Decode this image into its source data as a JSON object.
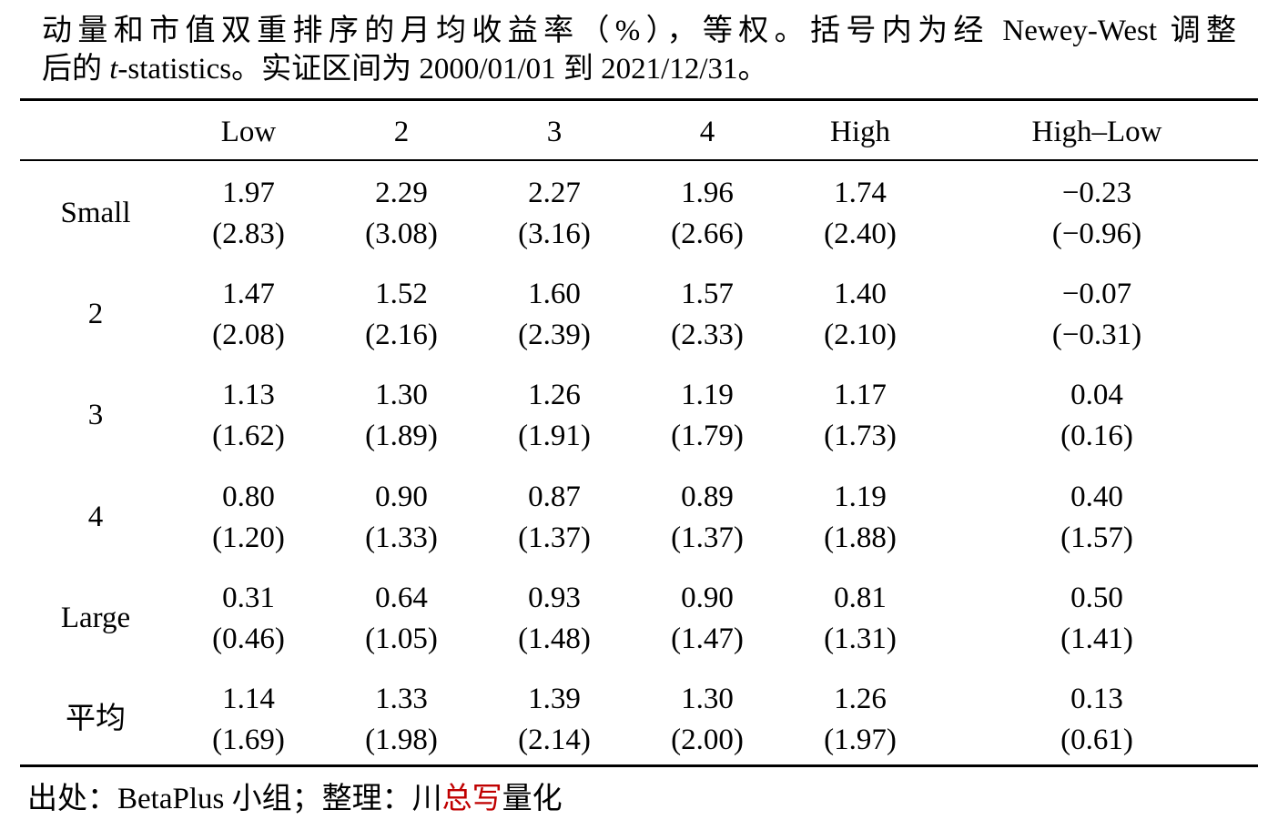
{
  "caption": {
    "line1": "动量和市值双重排序的月均收益率（%），等权。括号内为经 Newey-West 调整",
    "line2_before": "后的 ",
    "line2_italic": "t",
    "line2_after": "-statistics。实证区间为 2000/01/01 到 2021/12/31。"
  },
  "table": {
    "columns": [
      "Low",
      "2",
      "3",
      "4",
      "High",
      "High–Low"
    ],
    "rows": [
      {
        "label": "Small",
        "values": [
          "1.97",
          "2.29",
          "2.27",
          "1.96",
          "1.74",
          "−0.23"
        ],
        "tstats": [
          "(2.83)",
          "(3.08)",
          "(3.16)",
          "(2.66)",
          "(2.40)",
          "(−0.96)"
        ]
      },
      {
        "label": "2",
        "values": [
          "1.47",
          "1.52",
          "1.60",
          "1.57",
          "1.40",
          "−0.07"
        ],
        "tstats": [
          "(2.08)",
          "(2.16)",
          "(2.39)",
          "(2.33)",
          "(2.10)",
          "(−0.31)"
        ]
      },
      {
        "label": "3",
        "values": [
          "1.13",
          "1.30",
          "1.26",
          "1.19",
          "1.17",
          "0.04"
        ],
        "tstats": [
          "(1.62)",
          "(1.89)",
          "(1.91)",
          "(1.79)",
          "(1.73)",
          "(0.16)"
        ]
      },
      {
        "label": "4",
        "values": [
          "0.80",
          "0.90",
          "0.87",
          "0.89",
          "1.19",
          "0.40"
        ],
        "tstats": [
          "(1.20)",
          "(1.33)",
          "(1.37)",
          "(1.37)",
          "(1.88)",
          "(1.57)"
        ]
      },
      {
        "label": "Large",
        "values": [
          "0.31",
          "0.64",
          "0.93",
          "0.90",
          "0.81",
          "0.50"
        ],
        "tstats": [
          "(0.46)",
          "(1.05)",
          "(1.48)",
          "(1.47)",
          "(1.31)",
          "(1.41)"
        ]
      },
      {
        "label": "平均",
        "values": [
          "1.14",
          "1.33",
          "1.39",
          "1.30",
          "1.26",
          "0.13"
        ],
        "tstats": [
          "(1.69)",
          "(1.98)",
          "(2.14)",
          "(2.00)",
          "(1.97)",
          "(0.61)"
        ]
      }
    ]
  },
  "source": {
    "before": "出处：BetaPlus 小组；整理：川",
    "highlight": "总写",
    "after": "量化"
  }
}
